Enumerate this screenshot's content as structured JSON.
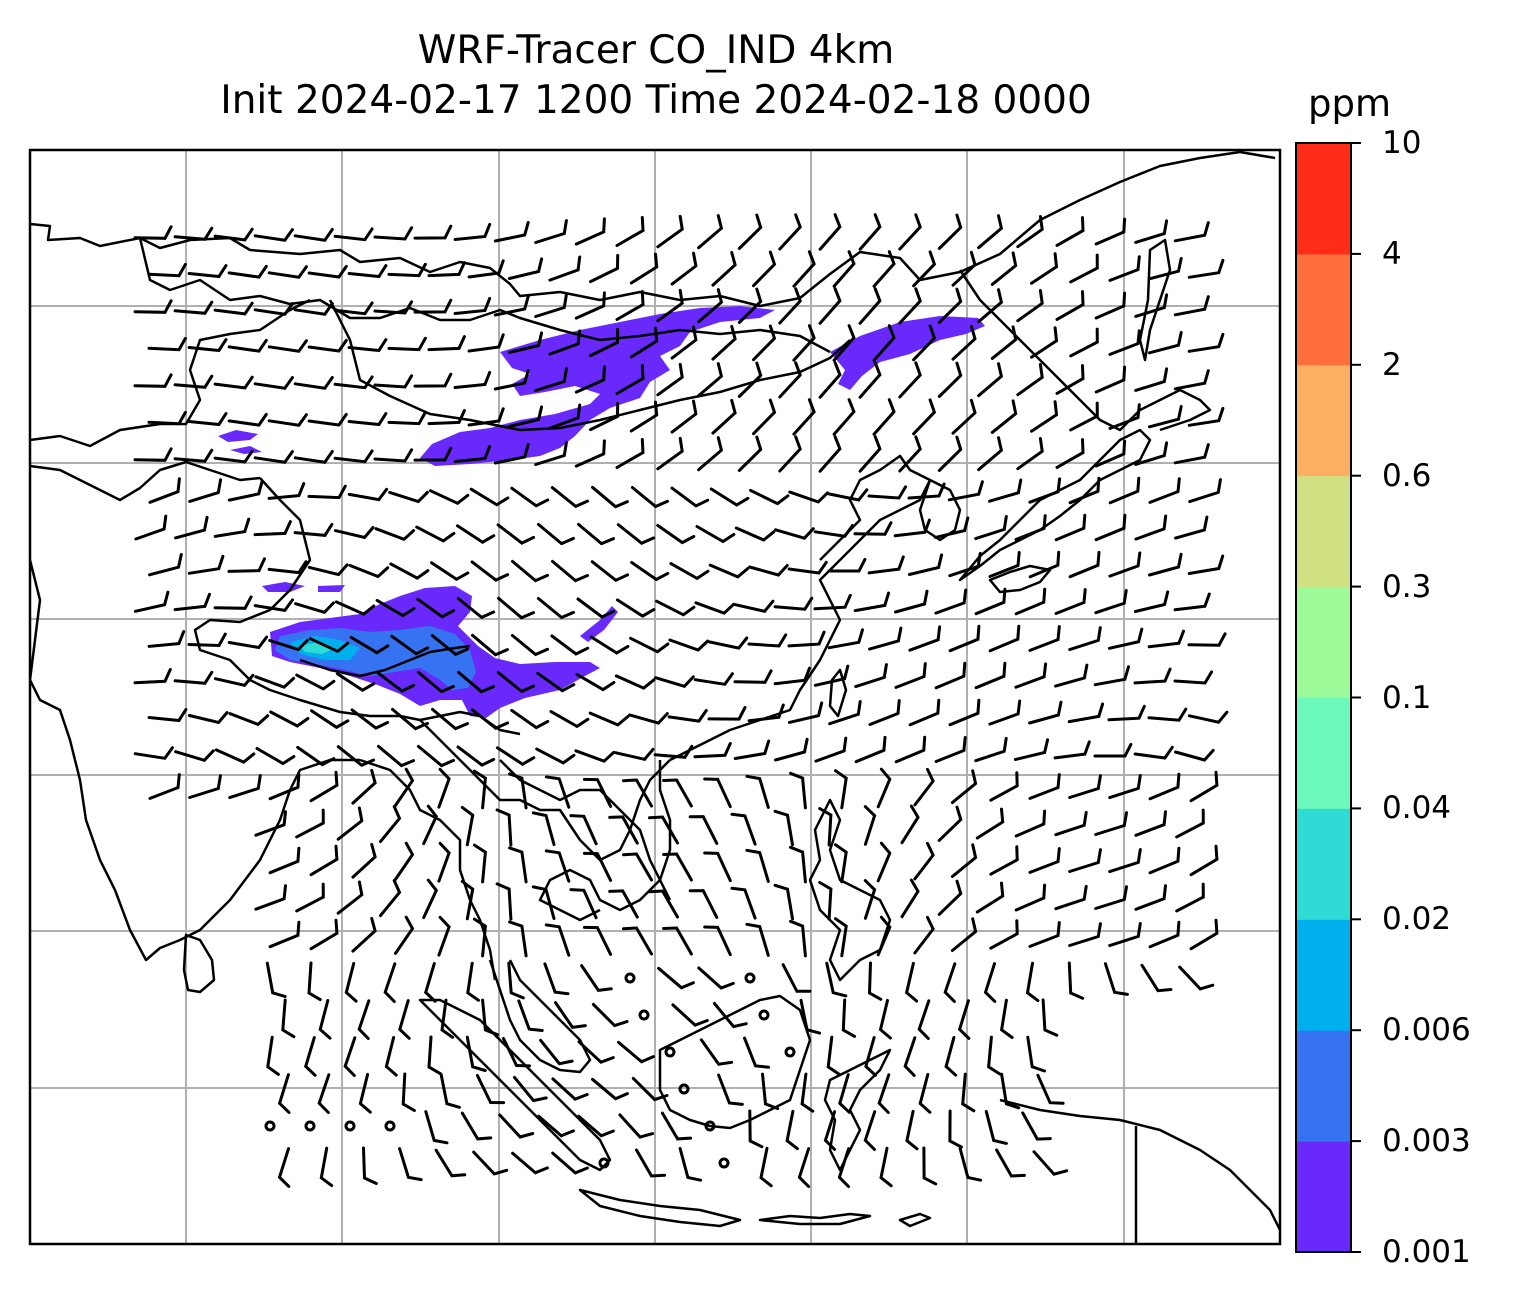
{
  "title_line1": "WRF-Tracer CO_IND 4km",
  "title_line2": "Init 2024-02-17 1200 Time 2024-02-18 0000",
  "colorbar": {
    "unit": "ppm",
    "levels": [
      "0.001",
      "0.003",
      "0.006",
      "0.02",
      "0.04",
      "0.1",
      "0.3",
      "0.6",
      "2",
      "4",
      "10"
    ],
    "colors": [
      "#6929fb",
      "#3673f2",
      "#00b0ec",
      "#2fdcd5",
      "#6bf9bc",
      "#9cfa98",
      "#cfe182",
      "#fdaf61",
      "#ff6f3c",
      "#ff2c18"
    ]
  },
  "map_style": {
    "coastline_color": "#000000",
    "gridline_color": "#b0b0b0",
    "tracer_main_color": "#6929fb",
    "tracer_inner_color": "#3673f2",
    "tracer_core_color": "#00b0ec"
  }
}
